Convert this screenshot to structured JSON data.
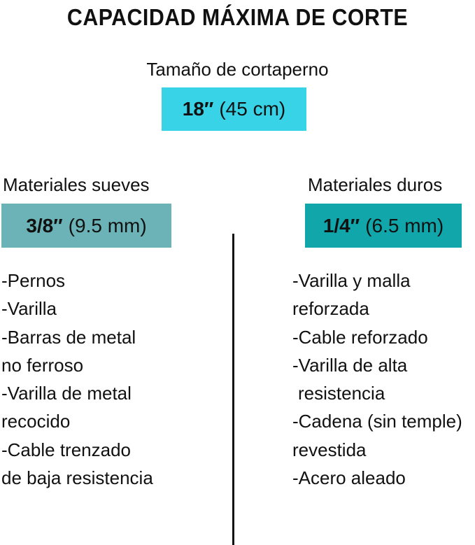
{
  "title": "CAPACIDAD MÁXIMA DE CORTE",
  "size": {
    "label": "Tamaño de cortaperno",
    "value_main": "18″",
    "value_metric": "(45 cm)",
    "color": "#38d3e6"
  },
  "soft": {
    "heading": "Materiales sueves",
    "value_main": "3/8″",
    "value_metric": "(9.5 mm)",
    "color": "#6cb3b7",
    "lines": [
      "-Pernos",
      "-Varilla",
      "-Barras de metal",
      "no ferroso",
      "-Varilla de metal",
      "recocido",
      "-Cable trenzado",
      "de baja resistencia"
    ]
  },
  "hard": {
    "heading": "Materiales duros",
    "value_main": "1/4″",
    "value_metric": "(6.5 mm)",
    "color": "#11a6aa",
    "lines": [
      "-Varilla y malla",
      "reforzada",
      "-Cable reforzado",
      "-Varilla de alta",
      "resistencia",
      "-Cadena (sin temple)",
      "revestida",
      "-Acero aleado"
    ]
  }
}
